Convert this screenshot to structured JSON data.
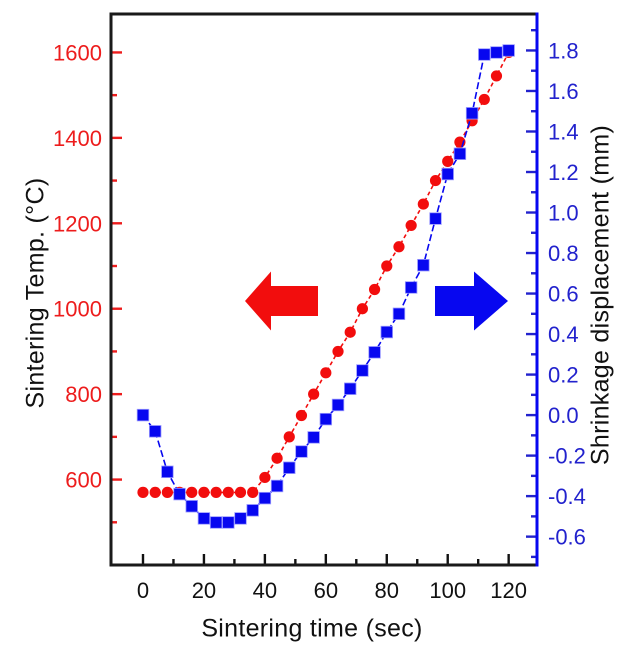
{
  "chart_data": {
    "type": "line",
    "title": "",
    "xlabel": "Sintering time (sec)",
    "left_ylabel": "Sintering Temp. (°C)",
    "right_ylabel": "Shrinkage displacement (mm)",
    "grid": false,
    "legend": "none",
    "x": [
      0,
      4,
      8,
      12,
      16,
      20,
      24,
      28,
      32,
      36,
      40,
      44,
      48,
      52,
      56,
      60,
      64,
      68,
      72,
      76,
      80,
      84,
      88,
      92,
      96,
      100,
      104,
      108,
      112,
      116,
      120
    ],
    "series": [
      {
        "name": "sintering-temperature",
        "axis": "left",
        "marker": "circle",
        "color": "#f20d0d",
        "line_dash": "4 3",
        "values": [
          570,
          570,
          570,
          570,
          570,
          570,
          570,
          570,
          570,
          570,
          605,
          650,
          700,
          750,
          800,
          850,
          900,
          945,
          1000,
          1045,
          1100,
          1145,
          1195,
          1245,
          1300,
          1345,
          1390,
          1440,
          1490,
          1545,
          1600
        ]
      },
      {
        "name": "shrinkage-displacement",
        "axis": "right",
        "marker": "square",
        "color": "#0707f0",
        "line_dash": "7 3",
        "values": [
          0.0,
          -0.08,
          -0.28,
          -0.39,
          -0.45,
          -0.51,
          -0.53,
          -0.53,
          -0.51,
          -0.47,
          -0.41,
          -0.35,
          -0.26,
          -0.18,
          -0.11,
          -0.02,
          0.05,
          0.13,
          0.22,
          0.31,
          0.41,
          0.5,
          0.63,
          0.74,
          0.97,
          1.19,
          1.29,
          1.49,
          1.78,
          1.79,
          1.8
        ]
      }
    ],
    "axes": {
      "x": {
        "min": -10.5,
        "max": 129.3,
        "tick_values": [
          0,
          20,
          40,
          60,
          80,
          100,
          120
        ],
        "tick_labels": [
          "0",
          "20",
          "40",
          "60",
          "80",
          "100",
          "120"
        ],
        "minor_step": 10,
        "color": "#111111"
      },
      "left": {
        "min": 400,
        "max": 1690,
        "tick_values": [
          600,
          800,
          1000,
          1200,
          1400,
          1600
        ],
        "tick_labels": [
          "600",
          "800",
          "1000",
          "1200",
          "1400",
          "1600"
        ],
        "minor_step": 100,
        "color": "#ed1c1c"
      },
      "right": {
        "min": -0.74,
        "max": 1.98,
        "tick_values": [
          -0.6,
          -0.4,
          -0.2,
          0,
          0.2,
          0.4,
          0.6,
          0.8,
          1,
          1.2,
          1.4,
          1.6,
          1.8
        ],
        "tick_labels": [
          "-0.6",
          "-0.4",
          "-0.2",
          "0.0",
          "0.2",
          "0.4",
          "0.6",
          "0.8",
          "1.0",
          "1.2",
          "1.4",
          "1.6",
          "1.8"
        ],
        "minor_step": 0.1,
        "color": "#2222cd"
      }
    },
    "annotations": [
      {
        "name": "left-arrow",
        "shape": "block-arrow",
        "direction": "left",
        "color": "#f20d0d",
        "meaning": "points to left temperature axis"
      },
      {
        "name": "right-arrow",
        "shape": "block-arrow",
        "direction": "right",
        "color": "#0707f0",
        "meaning": "points to right shrinkage axis"
      }
    ]
  }
}
